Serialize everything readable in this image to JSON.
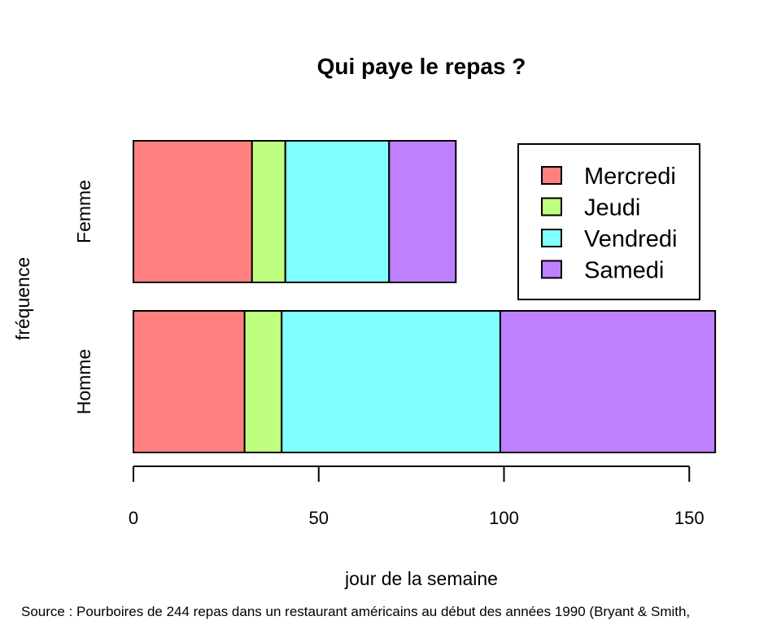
{
  "chart_data": {
    "type": "bar",
    "orientation": "horizontal",
    "stacked": true,
    "title": "Qui paye le repas ?",
    "xlabel": "jour de la semaine",
    "ylabel": "fréquence",
    "categories": [
      "Homme",
      "Femme"
    ],
    "series": [
      {
        "name": "Mercredi",
        "values": [
          30,
          32
        ],
        "color": "#FF8080"
      },
      {
        "name": "Jeudi",
        "values": [
          10,
          9
        ],
        "color": "#BFFF80"
      },
      {
        "name": "Vendredi",
        "values": [
          59,
          28
        ],
        "color": "#80FFFF"
      },
      {
        "name": "Samedi",
        "values": [
          58,
          18
        ],
        "color": "#BF80FF"
      }
    ],
    "xticks": [
      0,
      50,
      100,
      150
    ],
    "xlim": [
      0,
      157
    ],
    "legend_position": "top-right",
    "grid": false
  },
  "caption": "Source : Pourboires de 244 repas dans un restaurant américains au début des années 1990 (Bryant & Smith,"
}
